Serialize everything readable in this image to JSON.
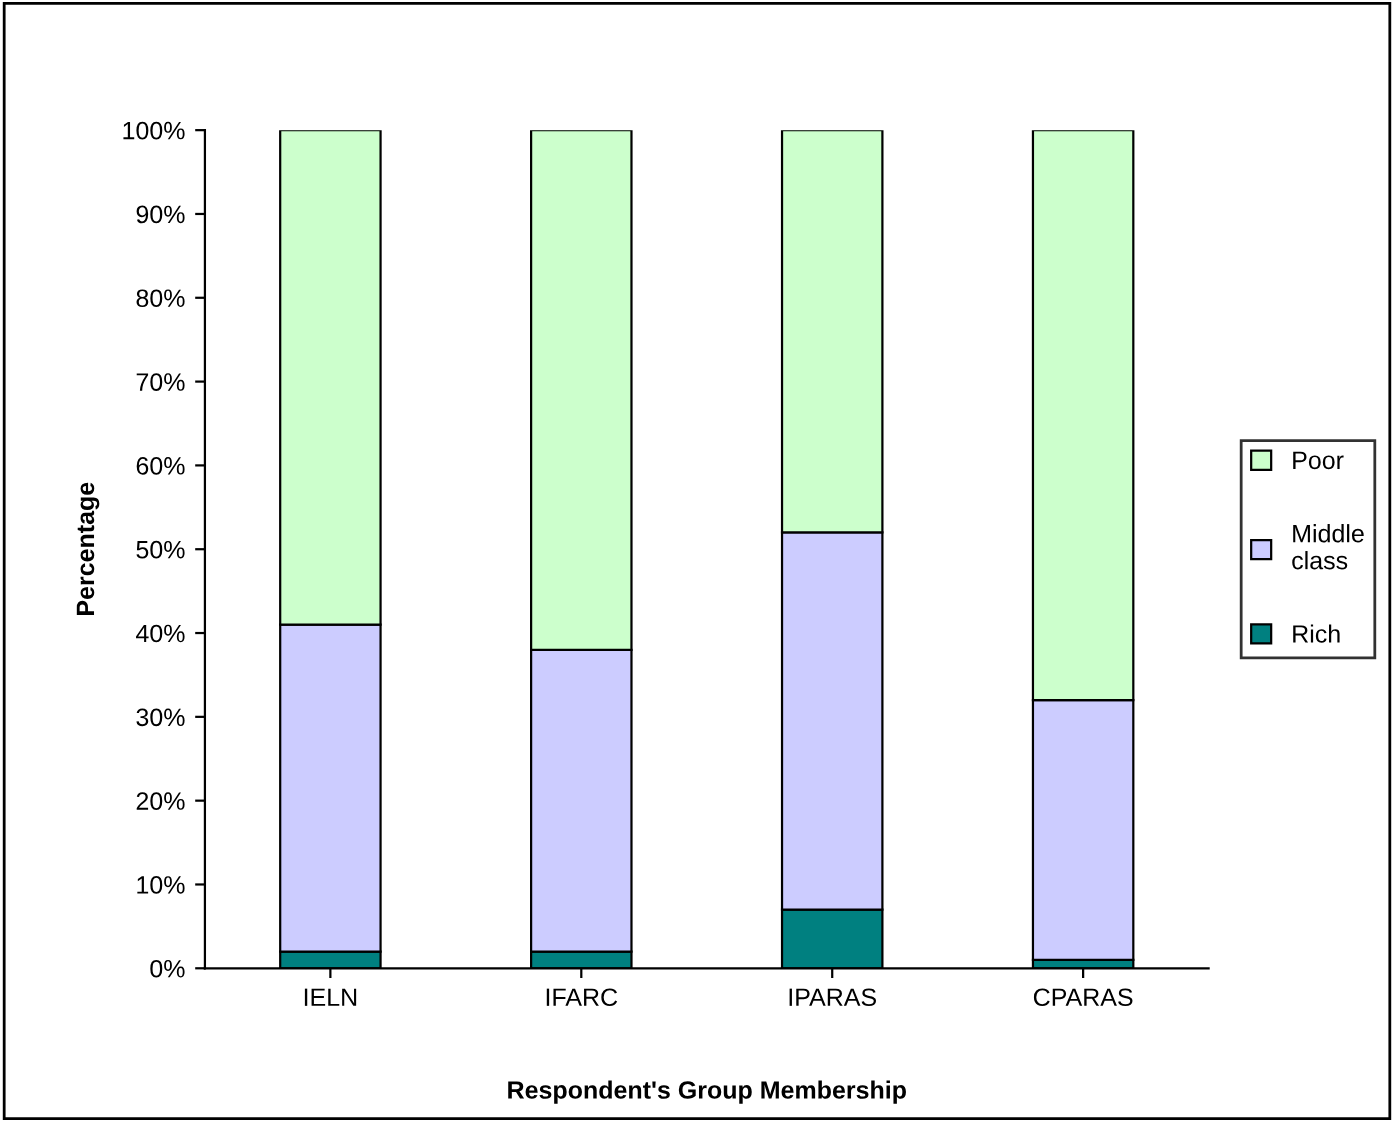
{
  "chart_data": {
    "type": "bar",
    "stacked": true,
    "xlabel": "Respondent's Group Membership",
    "ylabel": "Percentage",
    "categories": [
      "IELN",
      "IFARC",
      "IPARAS",
      "CPARAS"
    ],
    "series": [
      {
        "name": "Rich",
        "color": "#008080",
        "values": [
          2,
          2,
          7,
          1
        ]
      },
      {
        "name": "Middle class",
        "color": "#ccccff",
        "values": [
          39,
          36,
          45,
          31
        ]
      },
      {
        "name": "Poor",
        "color": "#ccffcc",
        "values": [
          59,
          62,
          48,
          68
        ]
      }
    ],
    "ylim": [
      0,
      100
    ],
    "yticks": [
      {
        "value": 0,
        "label": "0%"
      },
      {
        "value": 10,
        "label": "10%"
      },
      {
        "value": 20,
        "label": "20%"
      },
      {
        "value": 30,
        "label": "30%"
      },
      {
        "value": 40,
        "label": "40%"
      },
      {
        "value": 50,
        "label": "50%"
      },
      {
        "value": 60,
        "label": "60%"
      },
      {
        "value": 70,
        "label": "70%"
      },
      {
        "value": 80,
        "label": "80%"
      },
      {
        "value": 90,
        "label": "90%"
      },
      {
        "value": 100,
        "label": "100%"
      }
    ],
    "legend": "right",
    "grid": false
  }
}
